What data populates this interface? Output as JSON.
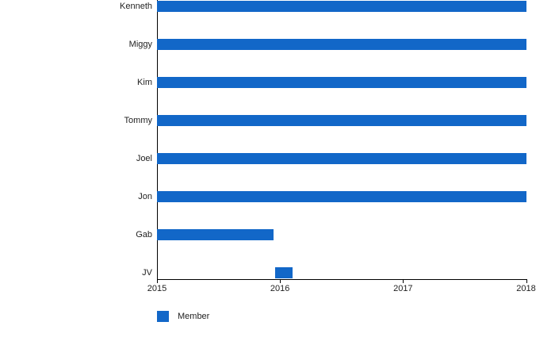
{
  "legend": {
    "label": "Member",
    "swatch_color": "#1267C8"
  },
  "chart_data": {
    "type": "bar",
    "orientation": "horizontal",
    "title": "",
    "xlabel": "",
    "ylabel": "",
    "categories": [
      "Kenneth",
      "Miggy",
      "Kim",
      "Tommy",
      "Joel",
      "Jon",
      "Gab",
      "JV"
    ],
    "x_ticks": [
      2015,
      2016,
      2017,
      2018
    ],
    "xlim": [
      2015,
      2018
    ],
    "grid": false,
    "legend_position": "bottom-left",
    "bar_color": "#1267C8",
    "axis_color": "#000000",
    "series": [
      {
        "name": "Member",
        "color": "#1267C8",
        "ranges": [
          {
            "category": "Kenneth",
            "start": 2015.0,
            "end": 2018.0
          },
          {
            "category": "Miggy",
            "start": 2015.0,
            "end": 2018.0
          },
          {
            "category": "Kim",
            "start": 2015.0,
            "end": 2018.0
          },
          {
            "category": "Tommy",
            "start": 2015.0,
            "end": 2018.0
          },
          {
            "category": "Joel",
            "start": 2015.0,
            "end": 2018.0
          },
          {
            "category": "Jon",
            "start": 2015.0,
            "end": 2018.0
          },
          {
            "category": "Gab",
            "start": 2015.0,
            "end": 2015.95
          },
          {
            "category": "JV",
            "start": 2015.96,
            "end": 2016.1
          }
        ]
      }
    ]
  }
}
